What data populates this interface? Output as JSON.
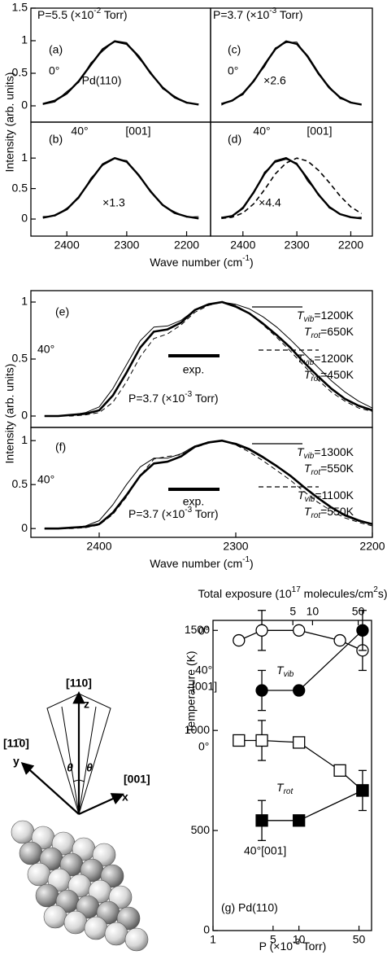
{
  "chart_data": [
    {
      "type": "line",
      "annotations": [
        "(a)",
        "0°",
        "Pd(110)",
        [
          "P=5.5 (×10",
          "-2",
          " Torr)"
        ]
      ],
      "ylabel": "Intensity (arb. units)",
      "x": [
        2440,
        2420,
        2400,
        2380,
        2360,
        2340,
        2320,
        2300,
        2280,
        2260,
        2240,
        2220,
        2200,
        2180
      ],
      "xlim": [
        2460,
        2160
      ],
      "ylim": [
        -0.25,
        1.5
      ],
      "yticks": [
        0,
        0.5,
        1,
        1.5
      ],
      "series": [
        {
          "color": "#000000",
          "line_width": 2.4,
          "values": [
            0.03,
            0.08,
            0.19,
            0.38,
            0.63,
            0.87,
            0.99,
            0.95,
            0.76,
            0.5,
            0.28,
            0.13,
            0.05,
            0.02
          ]
        },
        {
          "color": "#000000",
          "line_width": 1,
          "values": [
            0.02,
            0.06,
            0.22,
            0.36,
            0.66,
            0.84,
            1.0,
            0.97,
            0.73,
            0.52,
            0.26,
            0.15,
            0.04,
            0.03
          ]
        }
      ]
    },
    {
      "type": "line",
      "annotations": [
        "(b)",
        "40°",
        "[001]",
        "×1.3"
      ],
      "xlabel": [
        "Wave number (cm",
        "-1",
        ")"
      ],
      "x": [
        2440,
        2420,
        2400,
        2380,
        2360,
        2340,
        2320,
        2300,
        2280,
        2260,
        2240,
        2220,
        2200,
        2180
      ],
      "xlim": [
        2460,
        2160
      ],
      "xticks": [
        2400,
        2300,
        2200
      ],
      "ylim": [
        -0.28,
        1.59
      ],
      "yticks": [
        0,
        0.5,
        1
      ],
      "series": [
        {
          "color": "#000000",
          "line_width": 2.4,
          "values": [
            0.02,
            0.06,
            0.16,
            0.36,
            0.64,
            0.9,
            1.0,
            0.94,
            0.72,
            0.45,
            0.23,
            0.1,
            0.04,
            0.01
          ]
        },
        {
          "color": "#000000",
          "line_width": 1,
          "values": [
            0.04,
            0.05,
            0.18,
            0.34,
            0.67,
            0.88,
            0.99,
            0.96,
            0.7,
            0.47,
            0.22,
            0.12,
            0.03,
            0.04
          ]
        }
      ]
    },
    {
      "type": "line",
      "annotations": [
        "(c)",
        "0°",
        "×2.6",
        [
          "P=3.7 (×10",
          "-3",
          " Torr)"
        ]
      ],
      "x": [
        2440,
        2420,
        2400,
        2380,
        2360,
        2340,
        2320,
        2300,
        2280,
        2260,
        2240,
        2220,
        2200,
        2180
      ],
      "xlim": [
        2460,
        2160
      ],
      "ylim": [
        -0.25,
        1.5
      ],
      "series": [
        {
          "color": "#000000",
          "line_width": 2.4,
          "values": [
            0.03,
            0.08,
            0.19,
            0.38,
            0.63,
            0.87,
            0.99,
            0.95,
            0.76,
            0.5,
            0.28,
            0.13,
            0.05,
            0.02
          ]
        },
        {
          "color": "#000000",
          "line_width": 1,
          "values": [
            0.01,
            0.09,
            0.17,
            0.4,
            0.6,
            0.89,
            0.97,
            0.98,
            0.74,
            0.48,
            0.3,
            0.11,
            0.06,
            0.01
          ]
        }
      ]
    },
    {
      "type": "line",
      "annotations": [
        "(d)",
        "40°",
        "[001]",
        "×4.4"
      ],
      "x": [
        2440,
        2420,
        2400,
        2380,
        2360,
        2340,
        2320,
        2300,
        2280,
        2260,
        2240,
        2220,
        2200,
        2180
      ],
      "xlim": [
        2460,
        2160
      ],
      "xticks": [
        2400,
        2300,
        2200
      ],
      "ylim": [
        -0.28,
        1.59
      ],
      "series": [
        {
          "color": "#000000",
          "line_width": 2.4,
          "values": [
            0.02,
            0.05,
            0.18,
            0.44,
            0.74,
            0.95,
            1.0,
            0.9,
            0.66,
            0.4,
            0.2,
            0.08,
            0.03,
            0.01
          ]
        },
        {
          "color": "#000000",
          "line_width": 1,
          "values": [
            0.03,
            0.04,
            0.2,
            0.42,
            0.77,
            0.93,
            0.98,
            0.92,
            0.62,
            0.42,
            0.18,
            0.09,
            0.02,
            0.03
          ]
        },
        {
          "color": "#000000",
          "line_width": 1.6,
          "dash": true,
          "values": [
            0.01,
            0.03,
            0.1,
            0.25,
            0.48,
            0.74,
            0.92,
            1.0,
            0.95,
            0.8,
            0.6,
            0.38,
            0.2,
            0.09
          ]
        }
      ]
    },
    {
      "type": "line",
      "annotations": [
        "(e)",
        "40°",
        "exp.",
        [
          "P=3.7 (×10",
          "-3",
          " Torr)"
        ]
      ],
      "ylabel": "Intensity (arb. units)",
      "x": [
        2440,
        2430,
        2420,
        2410,
        2400,
        2390,
        2380,
        2370,
        2360,
        2350,
        2340,
        2330,
        2320,
        2310,
        2300,
        2290,
        2280,
        2270,
        2260,
        2250,
        2240,
        2230,
        2220,
        2210,
        2200
      ],
      "xlim": [
        2450,
        2200
      ],
      "ylim": [
        -0.1,
        1.1
      ],
      "yticks": [
        0,
        0.5,
        1
      ],
      "series": [
        {
          "color": "#000000",
          "line_width": 2.6,
          "values": [
            0,
            0,
            0.01,
            0.02,
            0.05,
            0.18,
            0.38,
            0.6,
            0.74,
            0.76,
            0.82,
            0.93,
            0.98,
            1.0,
            0.96,
            0.9,
            0.81,
            0.71,
            0.6,
            0.47,
            0.35,
            0.24,
            0.15,
            0.09,
            0.05
          ]
        },
        {
          "name": [
            [
              "T",
              "vib",
              "=1200K"
            ],
            [
              "T",
              "rot",
              "=650K"
            ]
          ],
          "color": "#000000",
          "line_width": 1,
          "values": [
            0,
            0,
            0.01,
            0.03,
            0.08,
            0.24,
            0.45,
            0.66,
            0.78,
            0.79,
            0.84,
            0.93,
            0.98,
            1.0,
            0.98,
            0.94,
            0.87,
            0.78,
            0.67,
            0.55,
            0.43,
            0.31,
            0.21,
            0.13,
            0.07
          ]
        },
        {
          "name": [
            [
              "T",
              "vib",
              "=1200K"
            ],
            [
              "T",
              "rot",
              "=450K"
            ]
          ],
          "color": "#000000",
          "line_width": 1,
          "dash": true,
          "values": [
            0,
            0,
            0,
            0.01,
            0.03,
            0.12,
            0.3,
            0.52,
            0.68,
            0.72,
            0.8,
            0.91,
            0.97,
            1.0,
            0.97,
            0.9,
            0.8,
            0.69,
            0.57,
            0.44,
            0.32,
            0.21,
            0.13,
            0.07,
            0.04
          ]
        }
      ]
    },
    {
      "type": "line",
      "annotations": [
        "(f)",
        "40°",
        "exp.",
        [
          "P=3.7 (×10",
          "-3",
          " Torr)"
        ]
      ],
      "xlabel": [
        "Wave number (cm",
        "-1",
        ")"
      ],
      "x": [
        2440,
        2430,
        2420,
        2410,
        2400,
        2390,
        2380,
        2370,
        2360,
        2350,
        2340,
        2330,
        2320,
        2310,
        2300,
        2290,
        2280,
        2270,
        2260,
        2250,
        2240,
        2230,
        2220,
        2210,
        2200
      ],
      "xlim": [
        2450,
        2200
      ],
      "xticks": [
        2400,
        2300,
        2200
      ],
      "ylim": [
        -0.1,
        1.15
      ],
      "yticks": [
        0,
        0.5,
        1
      ],
      "series": [
        {
          "color": "#000000",
          "line_width": 2.6,
          "values": [
            0,
            0,
            0.01,
            0.02,
            0.05,
            0.18,
            0.38,
            0.6,
            0.74,
            0.76,
            0.82,
            0.93,
            0.98,
            1.0,
            0.96,
            0.9,
            0.81,
            0.71,
            0.6,
            0.47,
            0.35,
            0.24,
            0.15,
            0.09,
            0.05
          ]
        },
        {
          "name": [
            [
              "T",
              "vib",
              "=1300K"
            ],
            [
              "T",
              "rot",
              "=550K"
            ]
          ],
          "color": "#000000",
          "line_width": 1,
          "values": [
            0,
            0,
            0.01,
            0.03,
            0.09,
            0.27,
            0.5,
            0.7,
            0.8,
            0.8,
            0.85,
            0.94,
            0.98,
            1.0,
            0.97,
            0.91,
            0.82,
            0.71,
            0.6,
            0.47,
            0.35,
            0.24,
            0.16,
            0.1,
            0.05
          ]
        },
        {
          "name": [
            [
              "T",
              "vib",
              "=1100K"
            ],
            [
              "T",
              "rot",
              "=550K"
            ]
          ],
          "color": "#000000",
          "line_width": 1,
          "dash": true,
          "values": [
            0,
            0,
            0,
            0.01,
            0.04,
            0.16,
            0.36,
            0.6,
            0.79,
            0.82,
            0.84,
            0.92,
            0.97,
            1.0,
            0.95,
            0.87,
            0.77,
            0.66,
            0.55,
            0.42,
            0.3,
            0.2,
            0.12,
            0.07,
            0.03
          ]
        }
      ]
    },
    {
      "type": "scatter",
      "connect": true,
      "xscale": "log",
      "annotations": [
        "0°",
        "40°",
        "[001]",
        [
          "T",
          "vib"
        ],
        "0°",
        [
          "T",
          "rot"
        ],
        "40°[001]",
        "(g) Pd(110)"
      ],
      "ylabel": "Temperature (K)",
      "xlabel": [
        "P (×10",
        "-3",
        " Torr)"
      ],
      "x2label": [
        "Total exposure (10",
        "17",
        " molecules/cm",
        "2",
        "s)"
      ],
      "xlim": [
        1,
        70
      ],
      "xticks": [
        1,
        5,
        10,
        50
      ],
      "x2lim": [
        0.3,
        80
      ],
      "x2ticks": [
        5,
        10,
        50
      ],
      "ylim": [
        0,
        1550
      ],
      "yticks": [
        0,
        500,
        1000,
        1500
      ],
      "series": [
        {
          "color": "#000000",
          "marker": "circle",
          "filled": false,
          "x": [
            2,
            3.7,
            10,
            30,
            55
          ],
          "values": [
            1450,
            1500,
            1500,
            1450,
            1400
          ],
          "errors": [
            null,
            100,
            null,
            null,
            100
          ]
        },
        {
          "color": "#000000",
          "marker": "circle",
          "filled": true,
          "x": [
            3.7,
            10,
            55
          ],
          "values": [
            1200,
            1200,
            1500
          ],
          "errors": [
            100,
            null,
            100
          ]
        },
        {
          "color": "#000000",
          "marker": "square",
          "filled": false,
          "x": [
            2,
            3.7,
            10,
            30,
            55
          ],
          "values": [
            950,
            950,
            940,
            800,
            700
          ],
          "errors": [
            null,
            100,
            null,
            null,
            null
          ]
        },
        {
          "color": "#000000",
          "marker": "square",
          "filled": true,
          "x": [
            3.7,
            10,
            55
          ],
          "values": [
            550,
            550,
            700
          ],
          "errors": [
            100,
            null,
            100
          ]
        }
      ]
    }
  ],
  "diagram": {
    "labels": [
      "[110]",
      "z",
      "[11̄0]",
      "y",
      "θ",
      "θ",
      "[001]",
      "x"
    ]
  }
}
